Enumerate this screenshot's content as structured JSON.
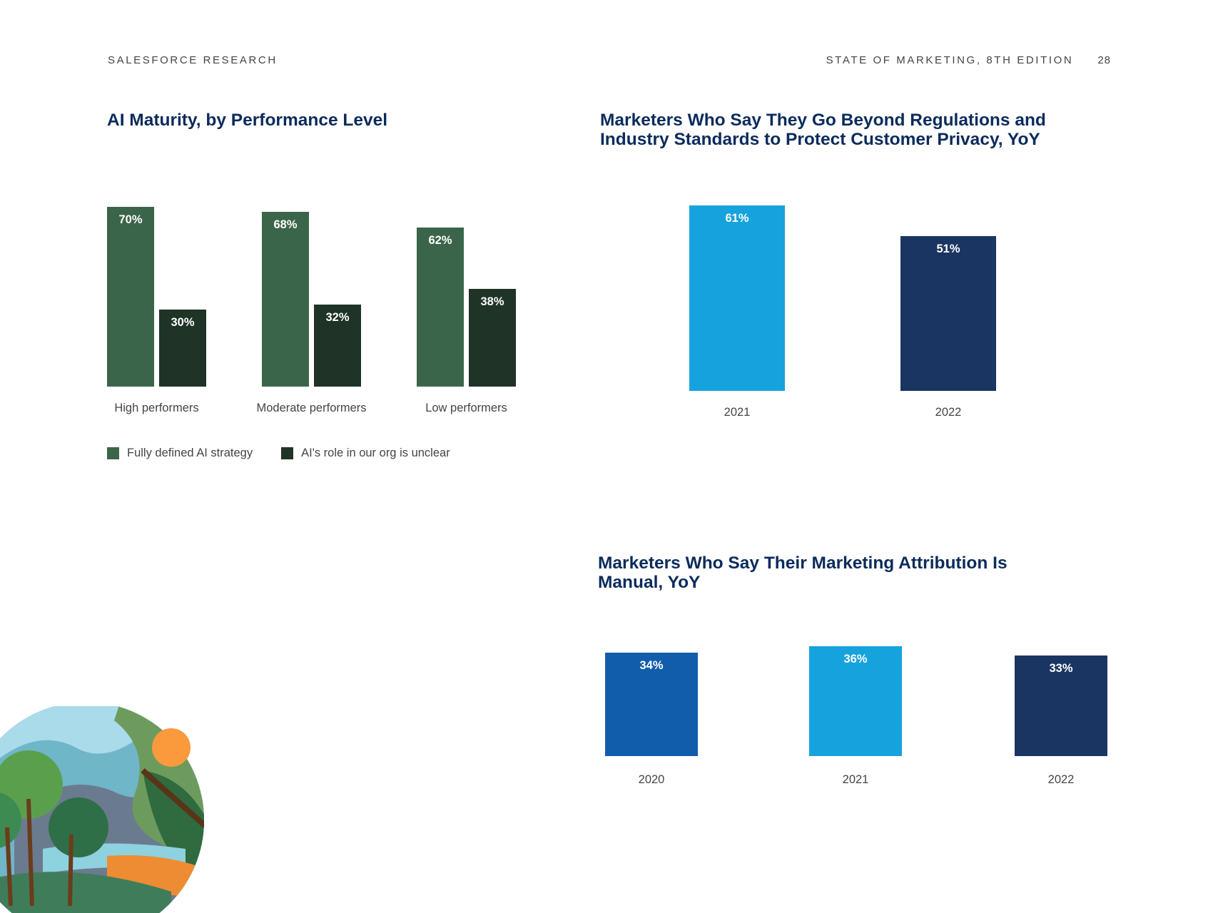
{
  "header": {
    "left": "SALESFORCE RESEARCH",
    "right": "STATE OF MARKETING, 8TH EDITION",
    "page": "28"
  },
  "colors": {
    "green": "#3b654a",
    "dark_green": "#1f3327",
    "light_blue": "#16a3dd",
    "mid_blue": "#125dab",
    "navy": "#1b3563"
  },
  "chart_data": [
    {
      "type": "bar",
      "title": "AI Maturity, by Performance Level",
      "categories": [
        "High performers",
        "Moderate performers",
        "Low performers"
      ],
      "series": [
        {
          "name": "Fully defined AI strategy",
          "values": [
            70,
            68,
            62
          ],
          "labels": [
            "70%",
            "68%",
            "62%"
          ],
          "color": "#3b654a"
        },
        {
          "name": "AI's role in our org is unclear",
          "values": [
            30,
            32,
            38
          ],
          "labels": [
            "30%",
            "32%",
            "38%"
          ],
          "color": "#1f3327"
        }
      ],
      "xlabel": "",
      "ylabel": "",
      "ylim": [
        0,
        70
      ],
      "grid": false,
      "legend": "bottom-left"
    },
    {
      "type": "bar",
      "title": "Marketers Who Say They Go Beyond Regulations and Industry Standards to Protect Customer Privacy, YoY",
      "categories": [
        "2021",
        "2022"
      ],
      "values": [
        61,
        51
      ],
      "labels": [
        "61%",
        "51%"
      ],
      "colors": [
        "#16a3dd",
        "#1b3563"
      ],
      "xlabel": "",
      "ylabel": "",
      "ylim": [
        0,
        61
      ],
      "grid": false
    },
    {
      "type": "bar",
      "title": "Marketers Who Say Their Marketing Attribution Is Manual, YoY",
      "categories": [
        "2020",
        "2021",
        "2022"
      ],
      "values": [
        34,
        36,
        33
      ],
      "labels": [
        "34%",
        "36%",
        "33%"
      ],
      "colors": [
        "#125dab",
        "#16a3dd",
        "#1b3563"
      ],
      "xlabel": "",
      "ylabel": "",
      "ylim": [
        0,
        36
      ],
      "grid": false
    }
  ]
}
